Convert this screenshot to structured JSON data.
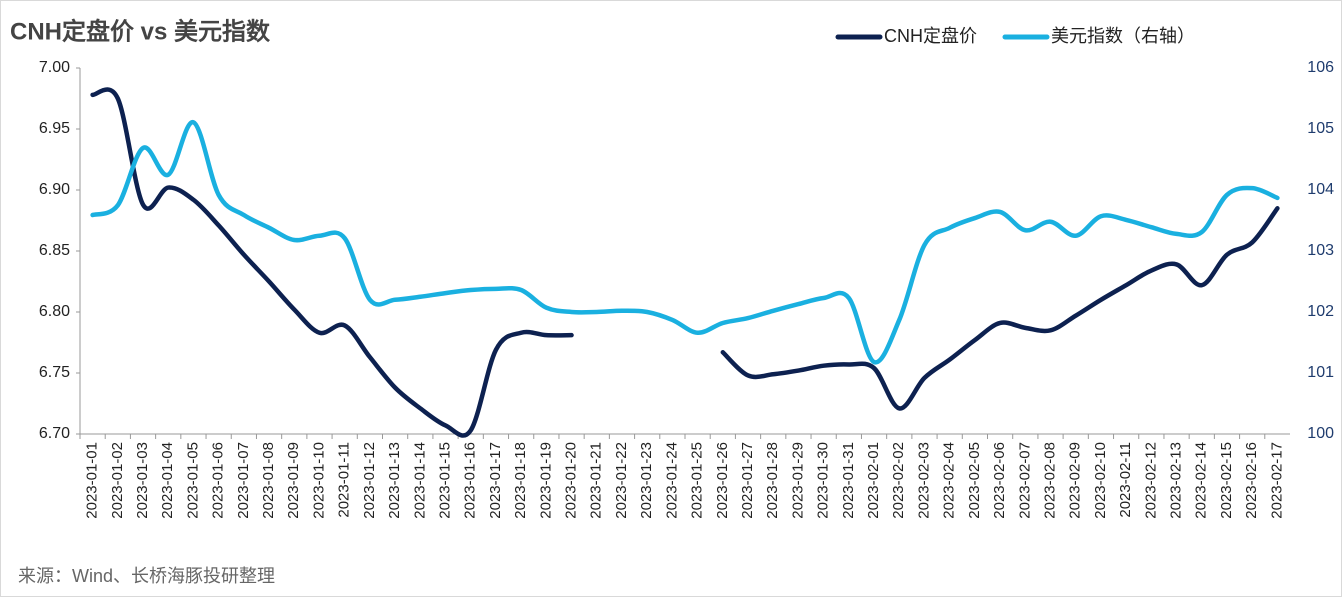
{
  "chart_data": {
    "type": "line",
    "title": "CNH定盘价 vs 美元指数",
    "note": "来源：Wind、长桥海豚投研整理",
    "categories": [
      "2023-01-01",
      "2023-01-02",
      "2023-01-03",
      "2023-01-04",
      "2023-01-05",
      "2023-01-06",
      "2023-01-07",
      "2023-01-08",
      "2023-01-09",
      "2023-01-10",
      "2023-01-11",
      "2023-01-12",
      "2023-01-13",
      "2023-01-14",
      "2023-01-15",
      "2023-01-16",
      "2023-01-17",
      "2023-01-18",
      "2023-01-19",
      "2023-01-20",
      "2023-01-21",
      "2023-01-22",
      "2023-01-23",
      "2023-01-24",
      "2023-01-25",
      "2023-01-26",
      "2023-01-27",
      "2023-01-28",
      "2023-01-29",
      "2023-01-30",
      "2023-01-31",
      "2023-02-01",
      "2023-02-02",
      "2023-02-03",
      "2023-02-04",
      "2023-02-05",
      "2023-02-06",
      "2023-02-07",
      "2023-02-08",
      "2023-02-09",
      "2023-02-10",
      "2023-02-11",
      "2023-02-12",
      "2023-02-13",
      "2023-02-14",
      "2023-02-15",
      "2023-02-16",
      "2023-02-17"
    ],
    "series": [
      {
        "name": "CNH定盘价",
        "color": "#0d2150",
        "axis": "y",
        "values": [
          6.978,
          6.975,
          6.888,
          6.902,
          6.892,
          6.871,
          6.847,
          6.825,
          6.802,
          6.783,
          6.789,
          6.763,
          6.738,
          6.721,
          6.707,
          6.703,
          6.769,
          6.783,
          6.781,
          6.781,
          null,
          null,
          null,
          null,
          null,
          6.767,
          6.748,
          6.749,
          6.752,
          6.756,
          6.757,
          6.754,
          6.721,
          6.746,
          6.761,
          6.777,
          6.791,
          6.787,
          6.785,
          6.797,
          6.81,
          6.822,
          6.834,
          6.839,
          6.822,
          6.847,
          6.857,
          6.885
        ]
      },
      {
        "name": "美元指数（右轴）",
        "color": "#1ab0e0",
        "axis": "y2",
        "values": [
          103.59,
          103.75,
          104.69,
          104.25,
          105.11,
          103.92,
          103.59,
          103.38,
          103.18,
          103.25,
          103.21,
          102.2,
          102.2,
          102.25,
          102.31,
          102.36,
          102.38,
          102.36,
          102.07,
          102.0,
          102.0,
          102.02,
          102.0,
          101.87,
          101.66,
          101.82,
          101.9,
          102.02,
          102.13,
          102.23,
          102.23,
          101.18,
          101.87,
          103.1,
          103.38,
          103.54,
          103.64,
          103.34,
          103.48,
          103.25,
          103.57,
          103.51,
          103.39,
          103.28,
          103.31,
          103.92,
          104.03,
          103.87
        ]
      }
    ],
    "ylim": [
      6.7,
      7.0
    ],
    "yticks": [
      {
        "value": 6.7,
        "label": "6.70"
      },
      6.75,
      {
        "value": 6.8,
        "label": "6.80"
      },
      6.85,
      {
        "value": 6.9,
        "label": "6.90"
      },
      6.95,
      {
        "value": 7,
        "label": "7.00"
      }
    ],
    "y2lim": [
      100,
      106
    ],
    "y2ticks": [
      100,
      101,
      102,
      103,
      104,
      105,
      106
    ],
    "grid": false,
    "legend": "top-right"
  }
}
